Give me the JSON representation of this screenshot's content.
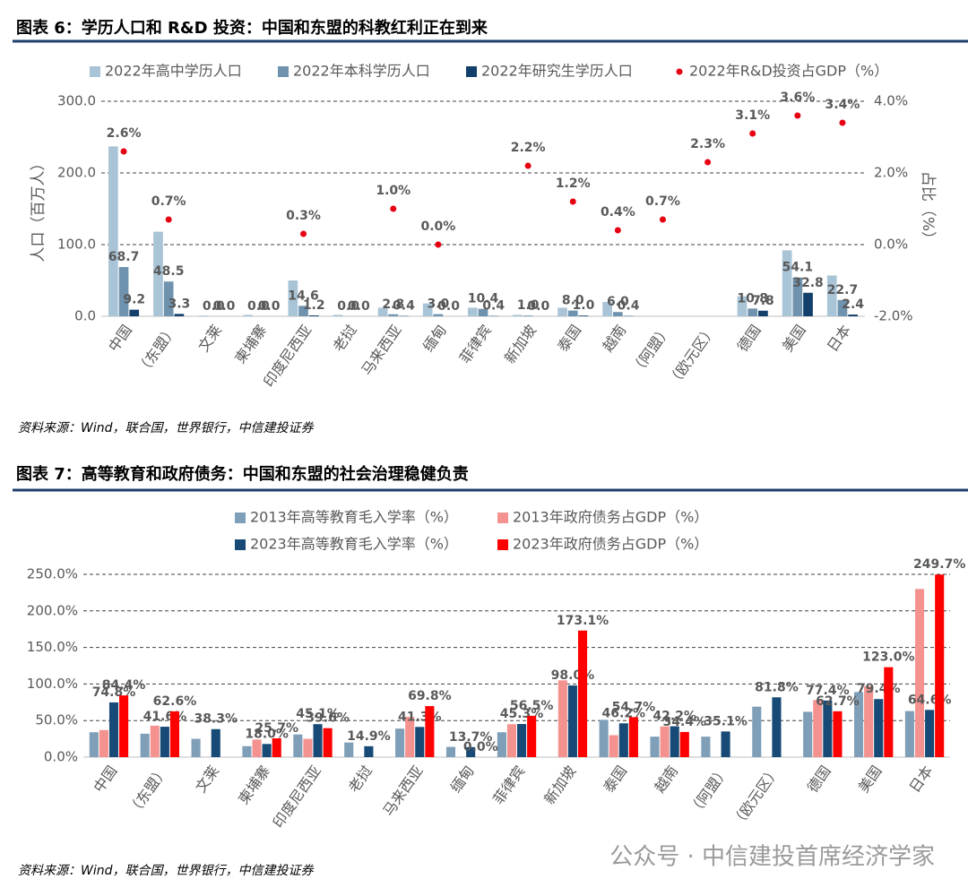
{
  "watermark": "公众号 · 中信建投首席经济学家",
  "chart_data": [
    {
      "type": "bar",
      "title": "图表 6：学历人口和 R&D 投资：中国和东盟的科教红利正在到来",
      "source": "资料来源：Wind，联合国，世界银行，中信建投证券",
      "y_label": "人口（百万人）",
      "y2_label": "占比（%）",
      "categories": [
        "中国",
        "（东盟）",
        "文莱",
        "柬埔寨",
        "印度尼西亚",
        "老挝",
        "马来西亚",
        "缅甸",
        "菲律宾",
        "新加坡",
        "泰国",
        "越南",
        "（阿盟）",
        "（欧元区）",
        "德国",
        "美国",
        "日本"
      ],
      "series": [
        {
          "name": "2022年高中学历人口",
          "color": "#a9c4d6",
          "values": [
            237,
            118,
            1,
            2,
            50,
            2,
            12,
            18,
            12,
            2,
            12,
            20,
            null,
            null,
            28,
            92,
            57
          ]
        },
        {
          "name": "2022年本科学历人口",
          "color": "#6f93ae",
          "values": [
            68.7,
            48.5,
            0,
            0,
            14.6,
            0,
            2.8,
            3,
            10.4,
            1,
            8,
            6,
            null,
            null,
            10.8,
            54.1,
            22.7
          ],
          "value_labels": [
            "68.7",
            "48.5",
            "0.0",
            "0.0",
            "14.6",
            "0.0",
            "2.8",
            "3.0",
            "10.4",
            "1.0",
            "8.0",
            "6.0",
            null,
            null,
            "10.8",
            "54.1",
            "22.7"
          ]
        },
        {
          "name": "2022年研究生学历人口",
          "color": "#123f6b",
          "values": [
            9.2,
            3.3,
            0,
            0,
            1.2,
            0,
            0.4,
            0,
            0.4,
            0,
            1,
            0.4,
            null,
            null,
            7.8,
            32.8,
            2.4
          ],
          "value_labels": [
            "9.2",
            "3.3",
            "0.0",
            "0.0",
            "1.2",
            "0.0",
            "0.4",
            "0.0",
            "0.4",
            "0.0",
            "1.0",
            "0.4",
            null,
            null,
            "7.8",
            "32.8",
            "2.4"
          ]
        },
        {
          "name": "2022年R&D投资占GDP（%）",
          "color": "#e60012",
          "axis": "y2",
          "values": [
            2.6,
            0.7,
            null,
            null,
            0.3,
            null,
            1.0,
            0.0,
            null,
            2.2,
            1.2,
            0.4,
            0.7,
            2.3,
            3.1,
            3.6,
            3.4
          ],
          "value_labels": [
            "2.6%",
            "0.7%",
            null,
            null,
            "0.3%",
            null,
            "1.0%",
            "0.0%",
            null,
            "2.2%",
            "1.2%",
            "0.4%",
            "0.7%",
            "2.3%",
            "3.1%",
            "3.6%",
            "3.4%"
          ]
        }
      ],
      "ylim": [
        0,
        300
      ],
      "yticks": [
        {
          "value": 0,
          "label": "0.0"
        },
        {
          "value": 100,
          "label": "100.0"
        },
        {
          "value": 200,
          "label": "200.0"
        },
        {
          "value": 300,
          "label": "300.0"
        }
      ],
      "y2lim": [
        -2,
        4
      ],
      "y2ticks": [
        {
          "value": -2,
          "label": "-2.0%"
        },
        {
          "value": 0,
          "label": "0.0%"
        },
        {
          "value": 2,
          "label": "2.0%"
        },
        {
          "value": 4,
          "label": "4.0%"
        }
      ],
      "grid": true,
      "legend": "top"
    },
    {
      "type": "bar",
      "title": "图表 7：高等教育和政府债务：中国和东盟的社会治理稳健负责",
      "source": "资料来源：Wind，联合国，世界银行，中信建投证券",
      "categories": [
        "中国",
        "（东盟）",
        "文莱",
        "柬埔寨",
        "印度尼西亚",
        "老挝",
        "马来西亚",
        "缅甸",
        "菲律宾",
        "新加坡",
        "泰国",
        "越南",
        "（阿盟）",
        "（欧元区）",
        "德国",
        "美国",
        "日本"
      ],
      "series": [
        {
          "name": "2013年高等教育毛入学率（%）",
          "color": "#7f9fb8",
          "values": [
            34,
            32,
            25,
            15,
            31,
            20,
            39,
            14,
            34,
            null,
            51,
            28,
            28,
            69,
            62,
            89,
            63
          ]
        },
        {
          "name": "2013年政府债务占GDP（%）",
          "color": "#f4928f",
          "values": [
            37,
            43,
            null,
            24,
            25,
            null,
            55,
            null,
            45,
            105,
            30,
            42,
            null,
            null,
            78,
            97,
            230
          ]
        },
        {
          "name": "2023年高等教育毛入学率（%）",
          "color": "#174a76",
          "values": [
            74.8,
            41.6,
            38.3,
            18.0,
            45.1,
            14.9,
            41.3,
            13.7,
            45.3,
            98.0,
            46.2,
            42.2,
            35.1,
            81.8,
            77.4,
            79.4,
            64.6
          ],
          "value_labels": [
            "74.8%",
            "41.6%",
            "38.3%",
            "18.0%",
            "45.1%",
            "14.9%",
            "41.3%",
            "13.7%",
            "45.3%",
            "98.0%",
            "46.2%",
            "42.2%",
            "35.1%",
            "81.8%",
            "77.4%",
            "79.4%",
            "64.6%"
          ]
        },
        {
          "name": "2023年政府债务占GDP（%）",
          "color": "#ff0000",
          "values": [
            84.4,
            62.6,
            null,
            25.7,
            39.6,
            null,
            69.8,
            0.0,
            56.5,
            173.1,
            54.7,
            34.4,
            null,
            null,
            62.7,
            123.0,
            249.7
          ],
          "value_labels": [
            "84.4%",
            "62.6%",
            null,
            "25.7%",
            "39.6%",
            null,
            "69.8%",
            "0.0%",
            "56.5%",
            "173.1%",
            "54.7%",
            "34.4%",
            null,
            null,
            "62.7%",
            "123.0%",
            "249.7%"
          ]
        }
      ],
      "ylim": [
        0,
        250
      ],
      "yticks": [
        {
          "value": 0,
          "label": "0.0%"
        },
        {
          "value": 50,
          "label": "50.0%"
        },
        {
          "value": 100,
          "label": "100.0%"
        },
        {
          "value": 150,
          "label": "150.0%"
        },
        {
          "value": 200,
          "label": "200.0%"
        },
        {
          "value": 250,
          "label": "250.0%"
        }
      ],
      "grid": true,
      "legend": "top"
    }
  ]
}
